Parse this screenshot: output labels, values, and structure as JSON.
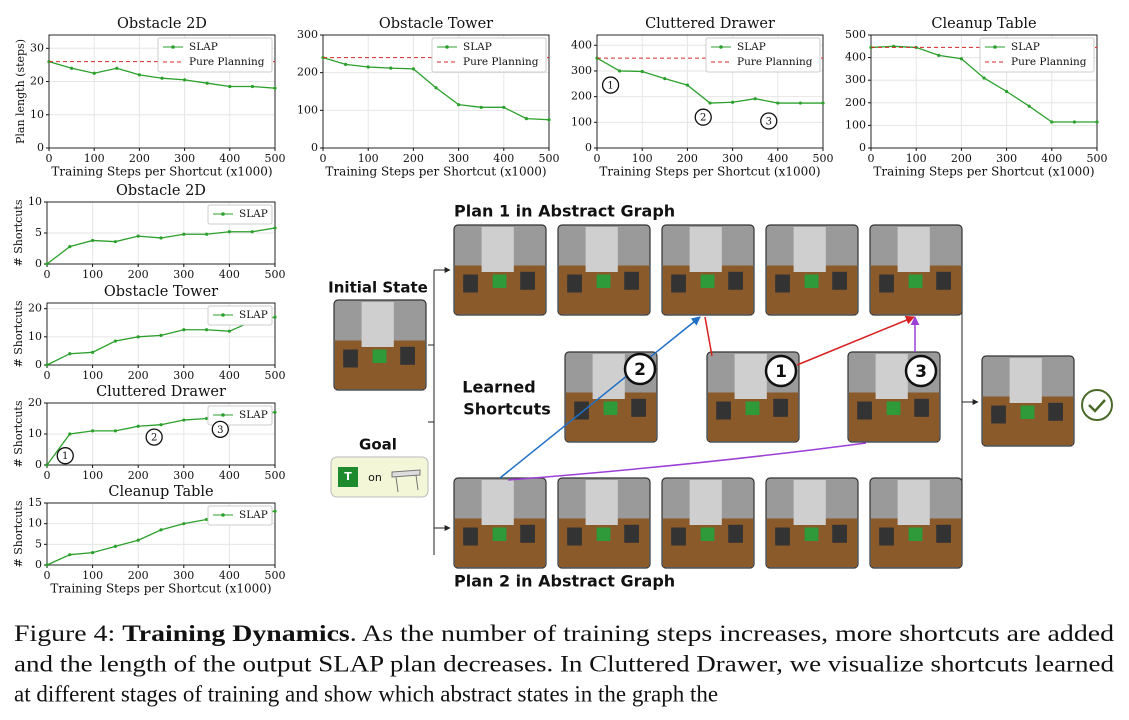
{
  "chart_data": [
    {
      "type": "line",
      "title": "Obstacle 2D",
      "x_label": "Training Steps per Shortcut (x1000)",
      "y_label": "Plan length (steps)",
      "x": [
        0,
        50,
        100,
        150,
        200,
        250,
        300,
        350,
        400,
        450,
        500
      ],
      "xlim": [
        0,
        500
      ],
      "xticks": [
        0,
        100,
        200,
        300,
        400,
        500
      ],
      "ylim": [
        0,
        34
      ],
      "yticks": [
        0,
        10,
        20,
        30
      ],
      "grid": true,
      "legend": "upper right",
      "series": [
        {
          "name": "SLAP",
          "color": "#2ca02c",
          "values": [
            26,
            24,
            22.5,
            24,
            22,
            21,
            20.5,
            19.5,
            18.5,
            18.5,
            18
          ]
        },
        {
          "name": "Pure Planning",
          "color": "#d62728",
          "style": "dashed",
          "values": [
            26,
            26,
            26,
            26,
            26,
            26,
            26,
            26,
            26,
            26,
            26
          ]
        }
      ]
    },
    {
      "type": "line",
      "title": "Obstacle Tower",
      "x_label": "Training Steps per Shortcut (x1000)",
      "x": [
        0,
        50,
        100,
        150,
        200,
        250,
        300,
        350,
        400,
        450,
        500
      ],
      "xlim": [
        0,
        500
      ],
      "xticks": [
        0,
        100,
        200,
        300,
        400,
        500
      ],
      "ylim": [
        0,
        300
      ],
      "yticks": [
        0,
        100,
        200,
        300
      ],
      "grid": true,
      "legend": "upper right",
      "series": [
        {
          "name": "SLAP",
          "color": "#2ca02c",
          "values": [
            240,
            222,
            215,
            212,
            210,
            160,
            115,
            108,
            108,
            78,
            75
          ]
        },
        {
          "name": "Pure Planning",
          "color": "#d62728",
          "style": "dashed",
          "values": [
            240,
            240,
            240,
            240,
            240,
            240,
            240,
            240,
            240,
            240,
            240
          ]
        }
      ]
    },
    {
      "type": "line",
      "title": "Cluttered Drawer",
      "x_label": "Training Steps per Shortcut (x1000)",
      "x": [
        0,
        50,
        100,
        150,
        200,
        250,
        300,
        350,
        400,
        450,
        500
      ],
      "xlim": [
        0,
        500
      ],
      "xticks": [
        0,
        100,
        200,
        300,
        400,
        500
      ],
      "ylim": [
        0,
        440
      ],
      "yticks": [
        0,
        100,
        200,
        300,
        400
      ],
      "grid": true,
      "legend": "upper right",
      "series": [
        {
          "name": "SLAP",
          "color": "#2ca02c",
          "values": [
            350,
            300,
            298,
            270,
            245,
            175,
            178,
            192,
            175,
            175,
            175
          ]
        },
        {
          "name": "Pure Planning",
          "color": "#d62728",
          "style": "dashed",
          "values": [
            350,
            350,
            350,
            350,
            350,
            350,
            350,
            350,
            350,
            350,
            350
          ]
        }
      ],
      "annotations": [
        {
          "text": "1",
          "x": 30,
          "y": 245
        },
        {
          "text": "2",
          "x": 235,
          "y": 120
        },
        {
          "text": "3",
          "x": 380,
          "y": 105
        }
      ]
    },
    {
      "type": "line",
      "title": "Cleanup Table",
      "x_label": "Training Steps per Shortcut (x1000)",
      "x": [
        0,
        50,
        100,
        150,
        200,
        250,
        300,
        350,
        400,
        450,
        500
      ],
      "xlim": [
        0,
        500
      ],
      "xticks": [
        0,
        100,
        200,
        300,
        400,
        500
      ],
      "ylim": [
        0,
        500
      ],
      "yticks": [
        0,
        100,
        200,
        300,
        400,
        500
      ],
      "grid": true,
      "legend": "upper right",
      "series": [
        {
          "name": "SLAP",
          "color": "#2ca02c",
          "values": [
            445,
            450,
            445,
            410,
            395,
            310,
            250,
            185,
            115,
            115,
            115
          ]
        },
        {
          "name": "Pure Planning",
          "color": "#d62728",
          "style": "dashed",
          "values": [
            445,
            445,
            445,
            445,
            445,
            445,
            445,
            445,
            445,
            445,
            445
          ]
        }
      ]
    },
    {
      "type": "line",
      "title": "Obstacle 2D",
      "y_label": "# Shortcuts",
      "x": [
        0,
        50,
        100,
        150,
        200,
        250,
        300,
        350,
        400,
        450,
        500
      ],
      "xlim": [
        0,
        500
      ],
      "xticks": [
        0,
        100,
        200,
        300,
        400,
        500
      ],
      "ylim": [
        0,
        10
      ],
      "yticks": [
        0,
        5,
        10
      ],
      "grid": true,
      "legend": "upper right",
      "series": [
        {
          "name": "SLAP",
          "color": "#2ca02c",
          "values": [
            0,
            2.8,
            3.8,
            3.6,
            4.5,
            4.2,
            4.8,
            4.8,
            5.2,
            5.2,
            5.8
          ]
        }
      ]
    },
    {
      "type": "line",
      "title": "Obstacle Tower",
      "y_label": "# Shortcuts",
      "x": [
        0,
        50,
        100,
        150,
        200,
        250,
        300,
        350,
        400,
        450,
        500
      ],
      "xlim": [
        0,
        500
      ],
      "xticks": [
        0,
        100,
        200,
        300,
        400,
        500
      ],
      "ylim": [
        0,
        22
      ],
      "yticks": [
        0,
        10,
        20
      ],
      "grid": true,
      "legend": "upper right",
      "series": [
        {
          "name": "SLAP",
          "color": "#2ca02c",
          "values": [
            0,
            4,
            4.5,
            8.5,
            10,
            10.5,
            12.5,
            12.5,
            12,
            15.5,
            17
          ]
        }
      ]
    },
    {
      "type": "line",
      "title": "Cluttered Drawer",
      "y_label": "# Shortcuts",
      "x": [
        0,
        50,
        100,
        150,
        200,
        250,
        300,
        350,
        400,
        450,
        500
      ],
      "xlim": [
        0,
        500
      ],
      "xticks": [
        0,
        100,
        200,
        300,
        400,
        500
      ],
      "ylim": [
        0,
        20
      ],
      "yticks": [
        0,
        10,
        20
      ],
      "grid": true,
      "legend": "upper right",
      "series": [
        {
          "name": "SLAP",
          "color": "#2ca02c",
          "values": [
            0,
            10,
            11,
            11,
            12.5,
            13,
            14.5,
            15,
            16,
            16.5,
            17
          ]
        }
      ],
      "annotations": [
        {
          "text": "1",
          "x": 40,
          "y": 3
        },
        {
          "text": "2",
          "x": 235,
          "y": 9
        },
        {
          "text": "3",
          "x": 380,
          "y": 11.5
        }
      ]
    },
    {
      "type": "line",
      "title": "Cleanup Table",
      "x_label": "Training Steps per Shortcut (x1000)",
      "y_label": "# Shortcuts",
      "x": [
        0,
        50,
        100,
        150,
        200,
        250,
        300,
        350,
        400,
        450,
        500
      ],
      "xlim": [
        0,
        500
      ],
      "xticks": [
        0,
        100,
        200,
        300,
        400,
        500
      ],
      "ylim": [
        0,
        15
      ],
      "yticks": [
        0,
        5,
        10,
        15
      ],
      "grid": true,
      "legend": "upper right",
      "series": [
        {
          "name": "SLAP",
          "color": "#2ca02c",
          "values": [
            0,
            2.5,
            3,
            4.5,
            6,
            8.5,
            10,
            11,
            11.5,
            12.5,
            13
          ]
        }
      ]
    }
  ],
  "diagram": {
    "plan1": "Plan 1 in Abstract Graph",
    "plan2": "Plan 2 in Abstract Graph",
    "initial_state": "Initial State",
    "goal": "Goal",
    "goal_block": "T",
    "goal_relation": "on",
    "shortcuts": [
      "Learned",
      "Shortcuts"
    ],
    "shortcut_ids": [
      "2",
      "1",
      "3"
    ]
  },
  "caption": {
    "lead": "Figure 4: ",
    "bold": "Training Dynamics",
    "lines": [
      ". As the number of training steps increases, more shortcuts are added",
      "and the length of the output SLAP plan decreases. In Cluttered Drawer, we visualize shortcuts learned",
      "at different stages of training and show which abstract states in the graph the"
    ]
  }
}
